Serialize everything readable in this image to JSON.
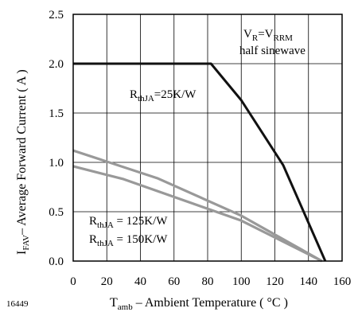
{
  "figure_number": "16449",
  "chart_data": {
    "type": "line",
    "xlabel": {
      "main": "T",
      "sub": "amb",
      "rest": " – Ambient Temperature ( °C )"
    },
    "ylabel": {
      "main": "I",
      "sub": "FAV",
      "rest": "– Average Forward Current ( A )"
    },
    "xlim": [
      0,
      160
    ],
    "ylim": [
      0.0,
      2.5
    ],
    "x_ticks": [
      0,
      20,
      40,
      60,
      80,
      100,
      120,
      140,
      160
    ],
    "y_ticks": [
      0.0,
      0.5,
      1.0,
      1.5,
      2.0,
      2.5
    ],
    "y_tick_labels": [
      "0.0",
      "0.5",
      "1.0",
      "1.5",
      "2.0",
      "2.5"
    ],
    "grid": true,
    "series": [
      {
        "name": "RthJA=25K/W",
        "color": "#111111",
        "x": [
          0,
          82,
          100,
          125,
          150
        ],
        "y": [
          2.0,
          2.0,
          1.63,
          0.97,
          0.0
        ]
      },
      {
        "name": "RthJA = 125K/W",
        "color": "#999999",
        "x": [
          0,
          50,
          100,
          148
        ],
        "y": [
          1.12,
          0.84,
          0.46,
          0.0
        ]
      },
      {
        "name": "RthJA = 150K/W",
        "color": "#999999",
        "x": [
          0,
          30,
          100,
          148
        ],
        "y": [
          0.96,
          0.83,
          0.41,
          0.0
        ]
      }
    ],
    "annotations": {
      "condition_line1": {
        "a": "V",
        "a_sub": "R",
        "eq": "=V",
        "b_sub": "RRM"
      },
      "condition_line2": "half sinewave",
      "label_25": {
        "main": "R",
        "sub": "thJA",
        "rest": "=25K/W"
      },
      "label_125": {
        "main": "R",
        "sub": "thJA",
        "rest": " = 125K/W"
      },
      "label_150": {
        "main": "R",
        "sub": "thJA",
        "rest": " = 150K/W"
      }
    }
  }
}
